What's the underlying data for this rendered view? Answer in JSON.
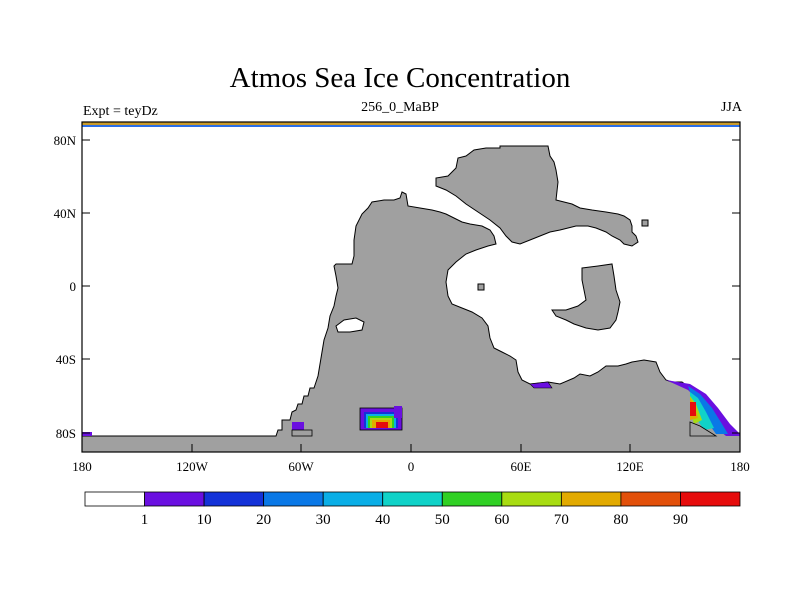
{
  "title": "Atmos Sea Ice Concentration",
  "subtitle": {
    "left": "Expt = teyDz",
    "center": "256_0_MaBP",
    "right": "JJA"
  },
  "map": {
    "projection": "cylindrical-equidistant",
    "land_color": "#a0a0a0",
    "lon_range": [
      -180,
      180
    ],
    "lat_range": [
      -90,
      90
    ],
    "y_tick_labels": [
      "80N",
      "40N",
      "0",
      "40S",
      "80S"
    ],
    "x_tick_labels": [
      "180",
      "120W",
      "60W",
      "0",
      "60E",
      "120E",
      "180"
    ]
  },
  "colorbar": {
    "levels": [
      "1",
      "10",
      "20",
      "30",
      "40",
      "50",
      "60",
      "70",
      "80",
      "90"
    ],
    "colors": [
      "#ffffff",
      "#6a0fe0",
      "#1432d8",
      "#0a78e6",
      "#0aaee6",
      "#10d2c8",
      "#30d024",
      "#a8dc12",
      "#e2aa00",
      "#e2500a",
      "#e60c0c"
    ]
  }
}
